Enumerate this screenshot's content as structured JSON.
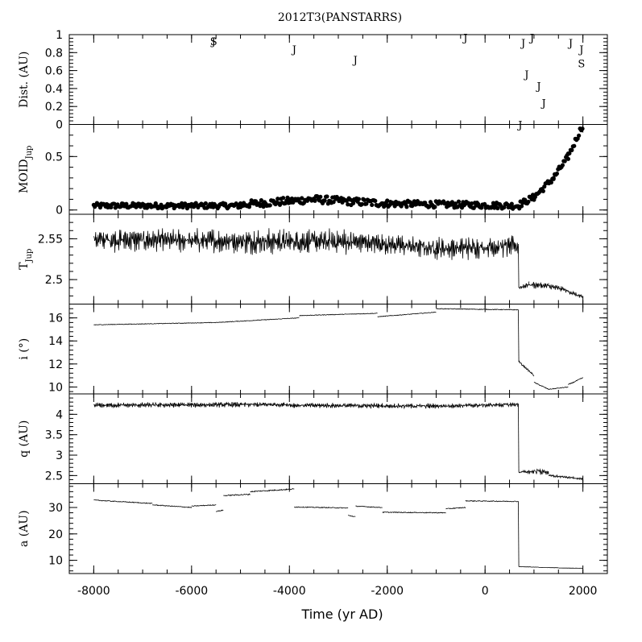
{
  "title": "2012T3(PANSTARRS)",
  "xlabel": "Time (yr AD)",
  "chart_data": {
    "type": "line",
    "x_range": [
      -8500,
      2500
    ],
    "x_ticks": [
      -8000,
      -6000,
      -4000,
      -2000,
      0,
      2000
    ],
    "panels": [
      {
        "id": "dist",
        "kind": "markers",
        "ylabel": "Dist. (AU)",
        "ylim": [
          0,
          1
        ],
        "y_ticks": [
          0,
          0.2,
          0.4,
          0.6,
          0.8,
          1
        ],
        "tick_labels": [
          "0",
          "0.2",
          "0.4",
          "0.6",
          "0.8",
          "1"
        ],
        "points": [
          {
            "x": -5550,
            "y": 0.93,
            "label": "S"
          },
          {
            "x": -5550,
            "y": 0.93,
            "label": "J"
          },
          {
            "x": -3900,
            "y": 0.84,
            "label": "J"
          },
          {
            "x": -2650,
            "y": 0.72,
            "label": "J"
          },
          {
            "x": -400,
            "y": 0.97,
            "label": "J"
          },
          {
            "x": 780,
            "y": 0.91,
            "label": "J"
          },
          {
            "x": 960,
            "y": 0.97,
            "label": "J"
          },
          {
            "x": 850,
            "y": 0.56,
            "label": "J"
          },
          {
            "x": 1100,
            "y": 0.43,
            "label": "J"
          },
          {
            "x": 1200,
            "y": 0.24,
            "label": "J"
          },
          {
            "x": 1750,
            "y": 0.91,
            "label": "J"
          },
          {
            "x": 1970,
            "y": 0.84,
            "label": "J"
          },
          {
            "x": 1970,
            "y": 0.68,
            "label": "S"
          },
          {
            "x": 720,
            "y": 0.0,
            "label": "J"
          }
        ]
      },
      {
        "id": "moid",
        "kind": "scatter",
        "ylabel": "MOID",
        "ylabel_sub": "Jup",
        "ylim": [
          -0.04,
          0.8
        ],
        "y_ticks": [
          0,
          0.5
        ],
        "tick_labels": [
          "0",
          "0.5"
        ],
        "segments": [
          {
            "x": [
              -8000,
              -5000
            ],
            "y": [
              0.04,
              0.04
            ],
            "noise": 0.025
          },
          {
            "x": [
              -5000,
              -3500
            ],
            "y": [
              0.05,
              0.1
            ],
            "noise": 0.035
          },
          {
            "x": [
              -3500,
              -2000
            ],
            "y": [
              0.1,
              0.06
            ],
            "noise": 0.035
          },
          {
            "x": [
              -2000,
              700
            ],
            "y": [
              0.06,
              0.04
            ],
            "noise": 0.03
          },
          {
            "x": [
              700,
              1000
            ],
            "y": [
              0.05,
              0.12
            ],
            "noise": 0.03
          },
          {
            "x": [
              1000,
              1400
            ],
            "y": [
              0.12,
              0.3
            ],
            "noise": 0.03
          },
          {
            "x": [
              1400,
              1700
            ],
            "y": [
              0.3,
              0.5
            ],
            "noise": 0.03
          },
          {
            "x": [
              1700,
              1990
            ],
            "y": [
              0.5,
              0.79
            ],
            "noise": 0.03
          }
        ]
      },
      {
        "id": "tjup",
        "kind": "oscillating",
        "ylabel": "T",
        "ylabel_sub": "Jup",
        "ylim": [
          2.47,
          2.58
        ],
        "y_ticks": [
          2.5,
          2.55
        ],
        "tick_labels": [
          "2.5",
          "2.55"
        ],
        "segments": [
          {
            "x": [
              -8000,
              -5000
            ],
            "y": [
              2.549,
              2.547
            ],
            "amp": 0.016
          },
          {
            "x": [
              -5000,
              -2500
            ],
            "y": [
              2.547,
              2.546
            ],
            "amp": 0.017
          },
          {
            "x": [
              -2500,
              -1000
            ],
            "y": [
              2.546,
              2.538
            ],
            "amp": 0.014
          },
          {
            "x": [
              -1000,
              680
            ],
            "y": [
              2.538,
              2.541
            ],
            "amp": 0.016
          },
          {
            "x": [
              690,
              900
            ],
            "y": [
              2.49,
              2.494
            ],
            "amp": 0.004
          },
          {
            "x": [
              900,
              1300
            ],
            "y": [
              2.494,
              2.492
            ],
            "amp": 0.005
          },
          {
            "x": [
              1300,
              1600
            ],
            "y": [
              2.492,
              2.488
            ],
            "amp": 0.004
          },
          {
            "x": [
              1600,
              2000
            ],
            "y": [
              2.488,
              2.478
            ],
            "amp": 0.003
          }
        ]
      },
      {
        "id": "incl",
        "kind": "steps",
        "ylabel": "i (°)",
        "ylim": [
          9.4,
          17.2
        ],
        "y_ticks": [
          10,
          12,
          14,
          16
        ],
        "tick_labels": [
          "10",
          "12",
          "14",
          "16"
        ],
        "segments": [
          {
            "x": [
              -8000,
              -5500
            ],
            "y": [
              15.4,
              15.6
            ],
            "amp": 0.05
          },
          {
            "x": [
              -5500,
              -3800
            ],
            "y": [
              15.6,
              16.0
            ],
            "amp": 0.05
          },
          {
            "x": [
              -3800,
              -2200
            ],
            "y": [
              16.2,
              16.4
            ],
            "amp": 0.05
          },
          {
            "x": [
              -2200,
              -1000
            ],
            "y": [
              16.1,
              16.5
            ],
            "amp": 0.05
          },
          {
            "x": [
              -1000,
              680
            ],
            "y": [
              16.8,
              16.7
            ],
            "amp": 0.06
          },
          {
            "x": [
              690,
              1000
            ],
            "y": [
              12.2,
              11.0
            ],
            "amp": 0.15
          },
          {
            "x": [
              1000,
              1300
            ],
            "y": [
              10.4,
              9.8
            ],
            "amp": 0.08
          },
          {
            "x": [
              1300,
              1700
            ],
            "y": [
              9.8,
              10.0
            ],
            "amp": 0.06
          },
          {
            "x": [
              1700,
              2000
            ],
            "y": [
              10.2,
              10.8
            ],
            "amp": 0.08
          }
        ]
      },
      {
        "id": "q",
        "kind": "oscillating",
        "ylabel": "q (AU)",
        "ylim": [
          2.3,
          4.5
        ],
        "y_ticks": [
          2.5,
          3,
          3.5,
          4
        ],
        "tick_labels": [
          "2.5",
          "3",
          "3.5",
          "4"
        ],
        "segments": [
          {
            "x": [
              -8000,
              -4000
            ],
            "y": [
              4.22,
              4.24
            ],
            "amp": 0.07
          },
          {
            "x": [
              -4000,
              -1000
            ],
            "y": [
              4.22,
              4.2
            ],
            "amp": 0.07
          },
          {
            "x": [
              -1000,
              680
            ],
            "y": [
              4.2,
              4.24
            ],
            "amp": 0.06
          },
          {
            "x": [
              690,
              1000
            ],
            "y": [
              2.58,
              2.6
            ],
            "amp": 0.06
          },
          {
            "x": [
              1000,
              1300
            ],
            "y": [
              2.62,
              2.58
            ],
            "amp": 0.09
          },
          {
            "x": [
              1300,
              2000
            ],
            "y": [
              2.5,
              2.42
            ],
            "amp": 0.03
          }
        ]
      },
      {
        "id": "a",
        "kind": "steps",
        "ylabel": "a (AU)",
        "ylim": [
          5,
          39
        ],
        "y_ticks": [
          10,
          20,
          30
        ],
        "tick_labels": [
          "10",
          "20",
          "30"
        ],
        "segments": [
          {
            "x": [
              -8000,
              -6800
            ],
            "y": [
              32.8,
              31.5
            ],
            "amp": 0.3
          },
          {
            "x": [
              -6800,
              -6000
            ],
            "y": [
              31.0,
              30.0
            ],
            "amp": 0.3
          },
          {
            "x": [
              -6000,
              -5500
            ],
            "y": [
              30.5,
              31.0
            ],
            "amp": 0.3
          },
          {
            "x": [
              -5500,
              -5350
            ],
            "y": [
              28.5,
              29.0
            ],
            "amp": 0.3
          },
          {
            "x": [
              -5350,
              -4800
            ],
            "y": [
              34.5,
              35.0
            ],
            "amp": 0.4
          },
          {
            "x": [
              -4800,
              -3900
            ],
            "y": [
              36.0,
              37.0
            ],
            "amp": 0.4
          },
          {
            "x": [
              -3900,
              -2800
            ],
            "y": [
              30.2,
              29.8
            ],
            "amp": 0.3
          },
          {
            "x": [
              -2800,
              -2650
            ],
            "y": [
              27.0,
              26.5
            ],
            "amp": 0.3
          },
          {
            "x": [
              -2650,
              -2100
            ],
            "y": [
              30.5,
              30.0
            ],
            "amp": 0.3
          },
          {
            "x": [
              -2100,
              -800
            ],
            "y": [
              28.2,
              28.0
            ],
            "amp": 0.3
          },
          {
            "x": [
              -800,
              -400
            ],
            "y": [
              29.5,
              30.0
            ],
            "amp": 0.3
          },
          {
            "x": [
              -400,
              680
            ],
            "y": [
              32.5,
              32.3
            ],
            "amp": 0.3
          },
          {
            "x": [
              690,
              1100
            ],
            "y": [
              7.6,
              7.4
            ],
            "amp": 0.1
          },
          {
            "x": [
              1100,
              1500
            ],
            "y": [
              7.3,
              7.2
            ],
            "amp": 0.05
          },
          {
            "x": [
              1500,
              2000
            ],
            "y": [
              7.1,
              7.0
            ],
            "amp": 0.05
          }
        ]
      }
    ]
  }
}
